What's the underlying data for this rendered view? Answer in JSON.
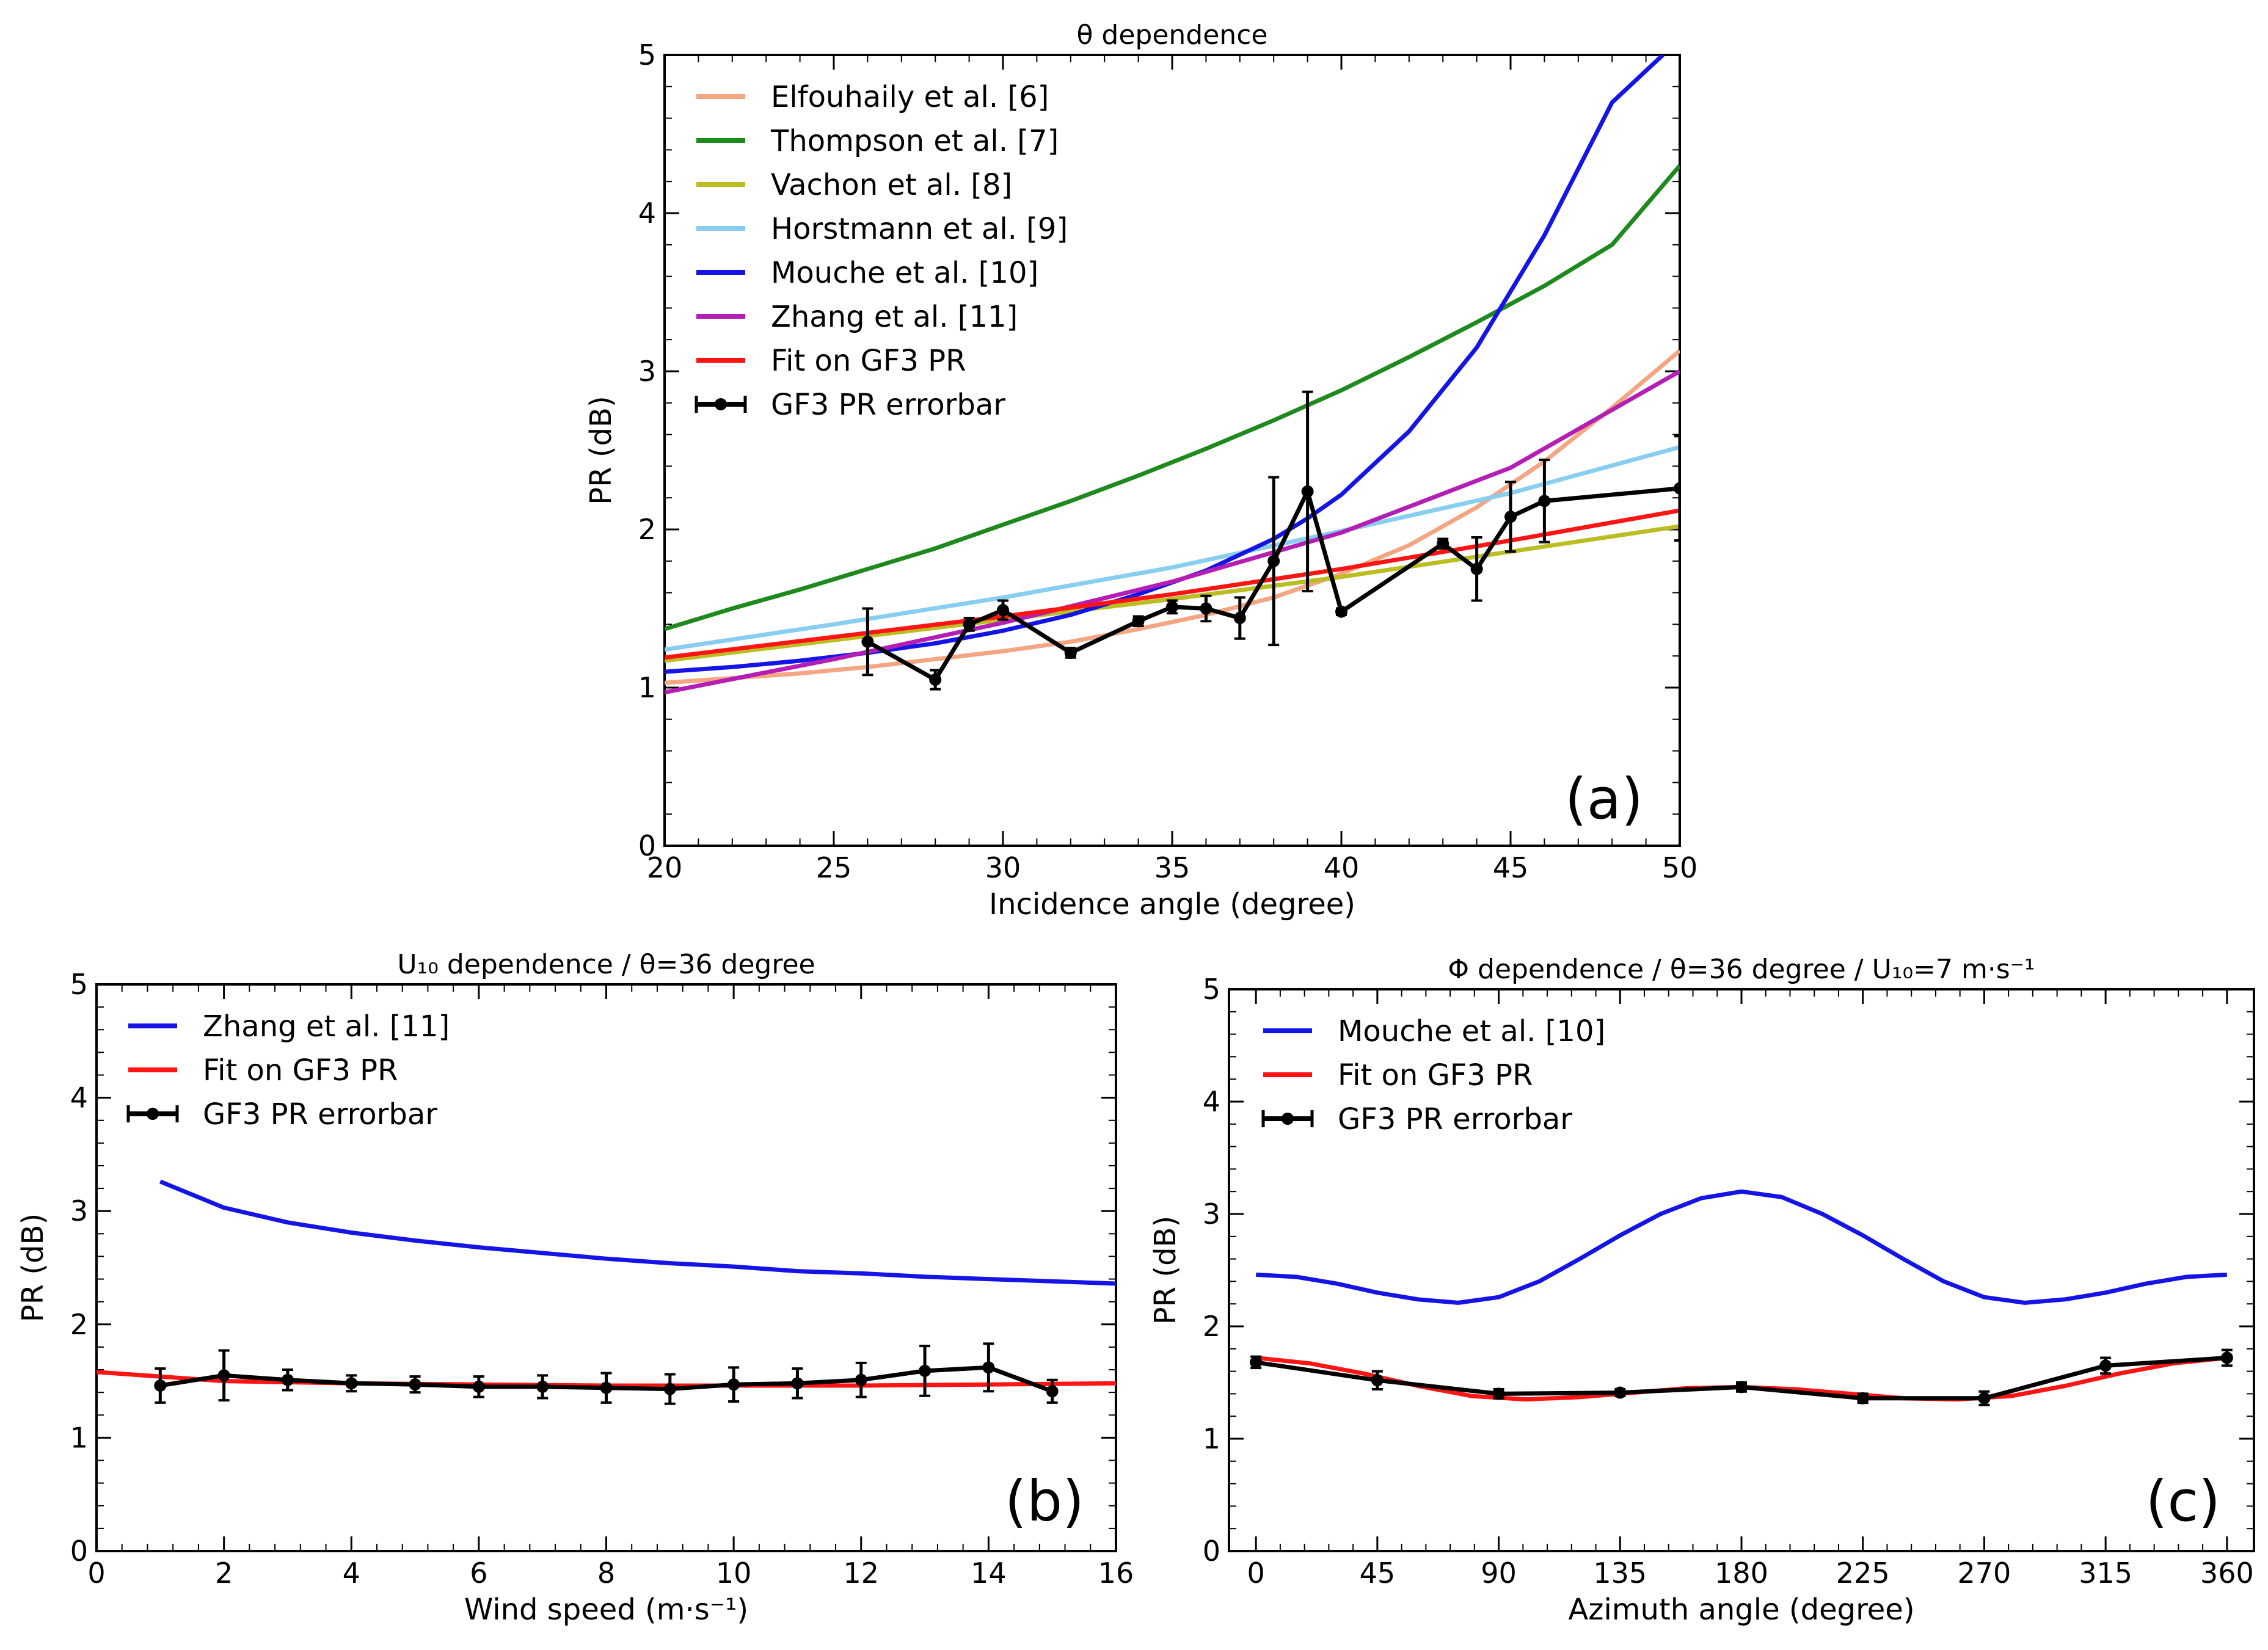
{
  "chart_data": [
    {
      "type": "line",
      "panel_label": "(a)",
      "title": "θ dependence",
      "xlabel": "Incidence angle (degree)",
      "ylabel": "PR (dB)",
      "xlim": [
        20,
        50
      ],
      "ylim": [
        0,
        5
      ],
      "xticks": [
        20,
        25,
        30,
        35,
        40,
        45,
        50
      ],
      "yticks": [
        0,
        1,
        2,
        3,
        4,
        5
      ],
      "legend_position": "upper-left",
      "series": [
        {
          "name": "Elfouhaily et al. [6]",
          "color": "#f4a582",
          "x": [
            20,
            22,
            24,
            26,
            28,
            30,
            32,
            34,
            36,
            38,
            40,
            42,
            44,
            46,
            48,
            50
          ],
          "y": [
            1.03,
            1.06,
            1.09,
            1.13,
            1.18,
            1.23,
            1.29,
            1.37,
            1.46,
            1.57,
            1.72,
            1.9,
            2.14,
            2.43,
            2.77,
            3.13
          ]
        },
        {
          "name": "Thompson et al. [7]",
          "color": "#1e8a1e",
          "x": [
            20,
            22,
            24,
            26,
            28,
            30,
            32,
            34,
            36,
            38,
            40,
            42,
            44,
            46,
            48,
            50
          ],
          "y": [
            1.37,
            1.5,
            1.62,
            1.75,
            1.88,
            2.03,
            2.18,
            2.34,
            2.51,
            2.69,
            2.88,
            3.09,
            3.31,
            3.54,
            3.8,
            4.3
          ]
        },
        {
          "name": "Vachon et al. [8]",
          "color": "#bcbd22",
          "x": [
            20,
            25,
            30,
            35,
            40,
            45,
            50
          ],
          "y": [
            1.17,
            1.3,
            1.43,
            1.56,
            1.7,
            1.86,
            2.02
          ]
        },
        {
          "name": "Horstmann et al. [9]",
          "color": "#87cef0",
          "x": [
            20,
            25,
            30,
            35,
            40,
            45,
            50
          ],
          "y": [
            1.24,
            1.4,
            1.57,
            1.76,
            1.99,
            2.23,
            2.52
          ]
        },
        {
          "name": "Mouche et al. [10]",
          "color": "#1414e6",
          "x": [
            20,
            22,
            24,
            26,
            28,
            30,
            32,
            34,
            36,
            38,
            39,
            40,
            42,
            44,
            46,
            48,
            49.5
          ],
          "y": [
            1.1,
            1.13,
            1.17,
            1.22,
            1.28,
            1.36,
            1.46,
            1.59,
            1.74,
            1.94,
            2.07,
            2.22,
            2.62,
            3.15,
            3.86,
            4.7,
            5.0
          ]
        },
        {
          "name": "Zhang et al. [11]",
          "color": "#b41eb4",
          "x": [
            20,
            25,
            30,
            35,
            40,
            45,
            50
          ],
          "y": [
            0.97,
            1.18,
            1.41,
            1.67,
            1.98,
            2.39,
            3.0
          ]
        },
        {
          "name": "Fit on GF3 PR",
          "color": "#ff1414",
          "x": [
            20,
            25,
            30,
            35,
            40,
            45,
            50
          ],
          "y": [
            1.19,
            1.32,
            1.45,
            1.59,
            1.75,
            1.93,
            2.12
          ]
        },
        {
          "name": "GF3 PR errorbar",
          "color": "#000000",
          "errorbar": true,
          "x": [
            26,
            28,
            29,
            30,
            32,
            34,
            35,
            36,
            37,
            38,
            39,
            40,
            43,
            44,
            45,
            46,
            50
          ],
          "y": [
            1.29,
            1.05,
            1.4,
            1.49,
            1.22,
            1.42,
            1.51,
            1.5,
            1.44,
            1.8,
            2.24,
            1.48,
            1.91,
            1.75,
            2.08,
            2.18,
            2.26
          ],
          "err": [
            0.21,
            0.06,
            0.04,
            0.06,
            0.03,
            0.03,
            0.04,
            0.08,
            0.13,
            0.53,
            0.63,
            0.02,
            0.03,
            0.2,
            0.22,
            0.26,
            0.33
          ]
        }
      ]
    },
    {
      "type": "line",
      "panel_label": "(b)",
      "title": "U₁₀ dependence / θ=36 degree",
      "xlabel": "Wind speed (m·s⁻¹)",
      "ylabel": "PR (dB)",
      "xlim": [
        0,
        16
      ],
      "ylim": [
        0,
        5
      ],
      "xticks": [
        0,
        2,
        4,
        6,
        8,
        10,
        12,
        14,
        16
      ],
      "yticks": [
        0,
        1,
        2,
        3,
        4,
        5
      ],
      "legend_position": "upper-left",
      "series": [
        {
          "name": "Zhang et al. [11]",
          "color": "#1414e6",
          "x": [
            1,
            2,
            3,
            4,
            5,
            6,
            7,
            8,
            9,
            10,
            11,
            12,
            13,
            14,
            15,
            16
          ],
          "y": [
            3.26,
            3.03,
            2.9,
            2.81,
            2.74,
            2.68,
            2.63,
            2.58,
            2.54,
            2.51,
            2.47,
            2.45,
            2.42,
            2.4,
            2.38,
            2.36
          ]
        },
        {
          "name": "Fit on GF3 PR",
          "color": "#ff1414",
          "x": [
            0,
            2,
            4,
            6,
            8,
            10,
            12,
            14,
            16
          ],
          "y": [
            1.58,
            1.5,
            1.48,
            1.47,
            1.46,
            1.46,
            1.46,
            1.47,
            1.48
          ]
        },
        {
          "name": "GF3 PR errorbar",
          "color": "#000000",
          "errorbar": true,
          "x": [
            1,
            2,
            3,
            4,
            5,
            6,
            7,
            8,
            9,
            10,
            11,
            12,
            13,
            14,
            15
          ],
          "y": [
            1.46,
            1.55,
            1.51,
            1.48,
            1.47,
            1.45,
            1.45,
            1.44,
            1.43,
            1.47,
            1.48,
            1.51,
            1.59,
            1.62,
            1.41
          ],
          "err": [
            0.15,
            0.22,
            0.09,
            0.07,
            0.07,
            0.09,
            0.1,
            0.13,
            0.13,
            0.15,
            0.13,
            0.15,
            0.22,
            0.21,
            0.1
          ]
        }
      ]
    },
    {
      "type": "line",
      "panel_label": "(c)",
      "title": "Φ dependence / θ=36 degree / U₁₀=7 m·s⁻¹",
      "xlabel": "Azimuth angle (degree)",
      "ylabel": "PR (dB)",
      "xlim": [
        -10,
        370
      ],
      "ylim": [
        0,
        5
      ],
      "xticks": [
        0,
        45,
        90,
        135,
        180,
        225,
        270,
        315,
        360
      ],
      "yticks": [
        0,
        1,
        2,
        3,
        4,
        5
      ],
      "legend_position": "upper-left",
      "series": [
        {
          "name": "Mouche et al. [10]",
          "color": "#1414e6",
          "x": [
            0,
            15,
            30,
            45,
            60,
            75,
            90,
            105,
            120,
            135,
            150,
            165,
            180,
            195,
            210,
            225,
            240,
            255,
            270,
            285,
            300,
            315,
            330,
            345,
            360
          ],
          "y": [
            2.46,
            2.44,
            2.38,
            2.3,
            2.24,
            2.21,
            2.26,
            2.4,
            2.6,
            2.81,
            3.0,
            3.14,
            3.2,
            3.15,
            3.0,
            2.81,
            2.6,
            2.4,
            2.26,
            2.21,
            2.24,
            2.3,
            2.38,
            2.44,
            2.46
          ]
        },
        {
          "name": "Fit on GF3 PR",
          "color": "#ff1414",
          "x": [
            0,
            20,
            40,
            60,
            80,
            100,
            120,
            140,
            160,
            180,
            200,
            220,
            240,
            260,
            280,
            300,
            320,
            340,
            360
          ],
          "y": [
            1.72,
            1.67,
            1.58,
            1.47,
            1.38,
            1.35,
            1.37,
            1.41,
            1.45,
            1.46,
            1.44,
            1.4,
            1.36,
            1.35,
            1.38,
            1.47,
            1.58,
            1.67,
            1.72
          ]
        },
        {
          "name": "GF3 PR errorbar",
          "color": "#000000",
          "errorbar": true,
          "x": [
            0,
            45,
            90,
            135,
            180,
            225,
            270,
            315,
            360
          ],
          "y": [
            1.68,
            1.52,
            1.4,
            1.41,
            1.46,
            1.36,
            1.36,
            1.65,
            1.72
          ],
          "err": [
            0.05,
            0.08,
            0.04,
            0.03,
            0.04,
            0.04,
            0.06,
            0.07,
            0.07
          ]
        }
      ]
    }
  ]
}
